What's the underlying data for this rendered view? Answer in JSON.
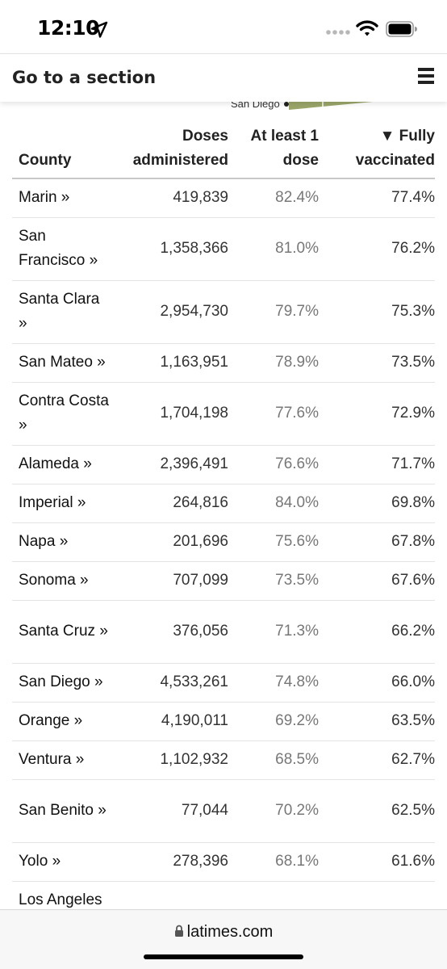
{
  "status_bar": {
    "time": "12:10",
    "icons": [
      "location-arrow-icon",
      "signal-dots-icon",
      "wifi-icon",
      "battery-icon"
    ]
  },
  "section_bar": {
    "title": "Go to a section",
    "menu_icon": "hamburger-menu-icon"
  },
  "map": {
    "label": "San Diego",
    "fill_color": "#9aa56a"
  },
  "table": {
    "headers": {
      "county": "County",
      "doses_line1": "Doses",
      "doses_line2": "administered",
      "atleast_line1": "At least 1",
      "atleast_line2": "dose",
      "fully_line1": "▼ Fully",
      "fully_line2": "vaccinated"
    },
    "rows": [
      {
        "county": "Marin »",
        "doses": "419,839",
        "at_least_1": "82.4%",
        "fully": "77.4%"
      },
      {
        "county": "San Francisco »",
        "doses": "1,358,366",
        "at_least_1": "81.0%",
        "fully": "76.2%"
      },
      {
        "county": "Santa Clara »",
        "doses": "2,954,730",
        "at_least_1": "79.7%",
        "fully": "75.3%"
      },
      {
        "county": "San Mateo »",
        "doses": "1,163,951",
        "at_least_1": "78.9%",
        "fully": "73.5%"
      },
      {
        "county": "Contra Costa »",
        "doses": "1,704,198",
        "at_least_1": "77.6%",
        "fully": "72.9%"
      },
      {
        "county": "Alameda »",
        "doses": "2,396,491",
        "at_least_1": "76.6%",
        "fully": "71.7%"
      },
      {
        "county": "Imperial »",
        "doses": "264,816",
        "at_least_1": "84.0%",
        "fully": "69.8%"
      },
      {
        "county": "Napa »",
        "doses": "201,696",
        "at_least_1": "75.6%",
        "fully": "67.8%"
      },
      {
        "county": "Sonoma »",
        "doses": "707,099",
        "at_least_1": "73.5%",
        "fully": "67.6%"
      },
      {
        "county": "Santa Cruz »",
        "doses": "376,056",
        "at_least_1": "71.3%",
        "fully": "66.2%"
      },
      {
        "county": "San Diego »",
        "doses": "4,533,261",
        "at_least_1": "74.8%",
        "fully": "66.0%"
      },
      {
        "county": "Orange »",
        "doses": "4,190,011",
        "at_least_1": "69.2%",
        "fully": "63.5%"
      },
      {
        "county": "Ventura »",
        "doses": "1,102,932",
        "at_least_1": "68.5%",
        "fully": "62.7%"
      },
      {
        "county": "San Benito »",
        "doses": "77,044",
        "at_least_1": "70.2%",
        "fully": "62.5%"
      },
      {
        "county": "Yolo »",
        "doses": "278,396",
        "at_least_1": "68.1%",
        "fully": "61.6%"
      },
      {
        "county": "Los Angeles »",
        "doses": "",
        "at_least_1": "",
        "fully": ""
      }
    ]
  },
  "bottom_bar": {
    "url": "latimes.com",
    "lock_icon": "lock-icon"
  }
}
